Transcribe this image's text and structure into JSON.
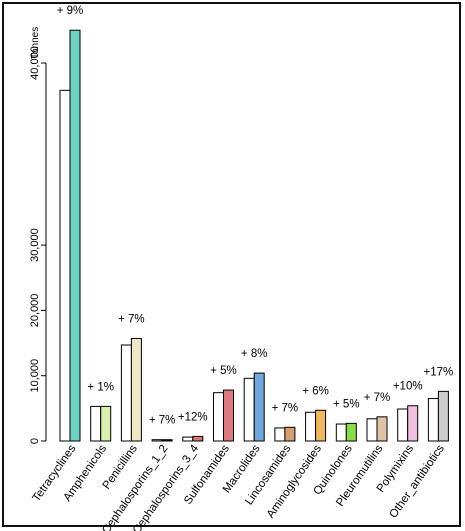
{
  "chart_data": {
    "type": "bar",
    "unit_label": "Tonnes",
    "y_tick_labels": [
      "0",
      "10,000",
      "20,000",
      "30,000",
      "40,000"
    ],
    "ylim": [
      0,
      40000
    ],
    "grid": false,
    "legend": "none",
    "categories": [
      "Tetracyclines",
      "Amphenicols",
      "Penicillins",
      "Cephalosporins_1_2",
      "Cephalosporins_3_4",
      "Sulfonamides",
      "Macrolides",
      "Lincosamides",
      "Aminoglycosides",
      "Quinolones",
      "Pleuromutilins",
      "Polymixins",
      "Other_antibiotics"
    ],
    "series": [
      {
        "values": [
          38500,
          5300,
          14700,
          200,
          600,
          7400,
          9600,
          2000,
          4400,
          2600,
          3400,
          4900,
          6500
        ]
      },
      {
        "values": [
          41800,
          5300,
          15700,
          200,
          700,
          7800,
          10400,
          2100,
          4700,
          2700,
          3700,
          5400,
          7600
        ]
      }
    ],
    "change_labels": [
      "+ 9%",
      "+ 1%",
      "+ 7%",
      "+ 7%",
      "+12%",
      "+ 5%",
      "+ 8%",
      "+ 7%",
      "+ 6%",
      "+ 5%",
      "+ 7%",
      "+10%",
      "+17%"
    ],
    "colors": [
      "#6dd3c3",
      "#d9efb0",
      "#eee8c8",
      "#222222",
      "#e07272",
      "#e07a82",
      "#6fa8dc",
      "#d5a070",
      "#f0b860",
      "#88dd44",
      "#e0c4a8",
      "#f0c0e0",
      "#cccccc"
    ],
    "first_series_color": "#ffffff"
  }
}
